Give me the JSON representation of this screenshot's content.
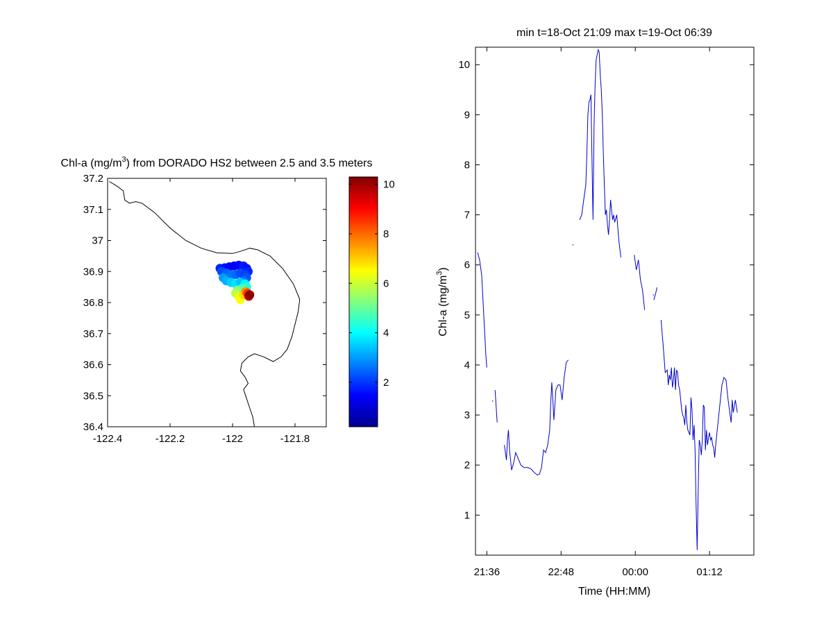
{
  "chart_data": [
    {
      "type": "scatter",
      "title": "Chl-a (mg/m",
      "title_sup": "3",
      "title_rest": ") from DORADO HS2 between 2.5 and 3.5 meters",
      "xlim": [
        -122.4,
        -121.7
      ],
      "ylim": [
        36.4,
        37.2
      ],
      "xticks": [
        -122.4,
        -122.2,
        -122,
        -121.8
      ],
      "xtick_labels": [
        "-122.4",
        "-122.2",
        "-122",
        "-121.8"
      ],
      "yticks": [
        36.4,
        36.5,
        36.6,
        36.7,
        36.8,
        36.9,
        37.0,
        37.1,
        37.2
      ],
      "ytick_labels": [
        "36.4",
        "36.5",
        "36.6",
        "36.7",
        "36.8",
        "36.9",
        "37",
        "37.1",
        "37.2"
      ],
      "colorbar": {
        "min": 0.2,
        "max": 10.3,
        "ticks": [
          2,
          4,
          6,
          8,
          10
        ],
        "tick_labels": [
          "2",
          "4",
          "6",
          "8",
          "10"
        ],
        "colormap": "jet"
      },
      "coastline": [
        [
          -122.395,
          37.19
        ],
        [
          -122.37,
          37.175
        ],
        [
          -122.35,
          37.16
        ],
        [
          -122.345,
          37.13
        ],
        [
          -122.33,
          37.12
        ],
        [
          -122.31,
          37.125
        ],
        [
          -122.29,
          37.12
        ],
        [
          -122.25,
          37.09
        ],
        [
          -122.2,
          37.04
        ],
        [
          -122.15,
          37.0
        ],
        [
          -122.1,
          36.975
        ],
        [
          -122.05,
          36.96
        ],
        [
          -122.0,
          36.958
        ],
        [
          -121.975,
          36.965
        ],
        [
          -121.945,
          36.975
        ],
        [
          -121.92,
          36.97
        ],
        [
          -121.88,
          36.95
        ],
        [
          -121.84,
          36.91
        ],
        [
          -121.805,
          36.86
        ],
        [
          -121.785,
          36.81
        ],
        [
          -121.79,
          36.77
        ],
        [
          -121.8,
          36.73
        ],
        [
          -121.81,
          36.69
        ],
        [
          -121.825,
          36.65
        ],
        [
          -121.845,
          36.625
        ],
        [
          -121.87,
          36.61
        ],
        [
          -121.9,
          36.625
        ],
        [
          -121.93,
          36.635
        ],
        [
          -121.95,
          36.625
        ],
        [
          -121.97,
          36.605
        ],
        [
          -121.975,
          36.58
        ],
        [
          -121.96,
          36.56
        ],
        [
          -121.95,
          36.54
        ],
        [
          -121.965,
          36.52
        ],
        [
          -121.955,
          36.49
        ],
        [
          -121.945,
          36.46
        ],
        [
          -121.935,
          36.43
        ],
        [
          -121.93,
          36.4
        ]
      ],
      "points": [
        {
          "lon": -122.04,
          "lat": 36.91,
          "v": 1.8
        },
        {
          "lon": -122.025,
          "lat": 36.912,
          "v": 1.6
        },
        {
          "lon": -122.01,
          "lat": 36.915,
          "v": 1.5
        },
        {
          "lon": -121.995,
          "lat": 36.918,
          "v": 1.4
        },
        {
          "lon": -121.98,
          "lat": 36.92,
          "v": 1.5
        },
        {
          "lon": -121.965,
          "lat": 36.918,
          "v": 1.7
        },
        {
          "lon": -121.955,
          "lat": 36.91,
          "v": 1.6
        },
        {
          "lon": -121.95,
          "lat": 36.9,
          "v": 1.8
        },
        {
          "lon": -122.035,
          "lat": 36.9,
          "v": 2.2
        },
        {
          "lon": -122.02,
          "lat": 36.895,
          "v": 2.4
        },
        {
          "lon": -122.005,
          "lat": 36.89,
          "v": 2.6
        },
        {
          "lon": -121.99,
          "lat": 36.89,
          "v": 2.5
        },
        {
          "lon": -121.975,
          "lat": 36.895,
          "v": 2.2
        },
        {
          "lon": -121.96,
          "lat": 36.89,
          "v": 2.1
        },
        {
          "lon": -121.955,
          "lat": 36.88,
          "v": 2.3
        },
        {
          "lon": -121.965,
          "lat": 36.87,
          "v": 2.6
        },
        {
          "lon": -122.03,
          "lat": 36.88,
          "v": 3.0
        },
        {
          "lon": -122.02,
          "lat": 36.87,
          "v": 3.2
        },
        {
          "lon": -122.005,
          "lat": 36.865,
          "v": 3.5
        },
        {
          "lon": -121.99,
          "lat": 36.86,
          "v": 3.7
        },
        {
          "lon": -121.975,
          "lat": 36.865,
          "v": 3.4
        },
        {
          "lon": -121.96,
          "lat": 36.86,
          "v": 3.9
        },
        {
          "lon": -121.955,
          "lat": 36.85,
          "v": 4.3
        },
        {
          "lon": -121.97,
          "lat": 36.845,
          "v": 4.8
        },
        {
          "lon": -121.985,
          "lat": 36.84,
          "v": 5.2
        },
        {
          "lon": -121.99,
          "lat": 36.83,
          "v": 5.8
        },
        {
          "lon": -121.98,
          "lat": 36.82,
          "v": 6.2
        },
        {
          "lon": -121.975,
          "lat": 36.81,
          "v": 6.5
        },
        {
          "lon": -121.965,
          "lat": 36.825,
          "v": 6.9
        },
        {
          "lon": -121.958,
          "lat": 36.835,
          "v": 7.6
        },
        {
          "lon": -121.952,
          "lat": 36.83,
          "v": 8.5
        },
        {
          "lon": -121.948,
          "lat": 36.82,
          "v": 9.5
        },
        {
          "lon": -121.945,
          "lat": 36.825,
          "v": 10.2
        }
      ]
    },
    {
      "type": "line",
      "title": "min t=18-Oct 21:09 max t=19-Oct 06:39",
      "xlabel": "Time (HH:MM)",
      "ylabel": "Chl-a (mg/m",
      "ylabel_sup": "3",
      "ylabel_rest": ")",
      "xlim": [
        "21:25",
        "01:55"
      ],
      "ylim": [
        0.2,
        10.35
      ],
      "xticks": [
        "21:36",
        "22:48",
        "00:00",
        "01:12"
      ],
      "xtick_labels": [
        "21:36",
        "22:48",
        "00:00",
        "01:12"
      ],
      "yticks": [
        1,
        2,
        3,
        4,
        5,
        6,
        7,
        8,
        9,
        10
      ],
      "ytick_labels": [
        "1",
        "2",
        "3",
        "4",
        "5",
        "6",
        "7",
        "8",
        "9",
        "10"
      ],
      "series": [
        {
          "color": "#0000cc",
          "segments": [
            [
              [
                "21:27",
                6.25
              ],
              [
                "21:29",
                6.1
              ],
              [
                "21:31",
                5.8
              ],
              [
                "21:33",
                5.0
              ],
              [
                "21:35",
                4.2
              ],
              [
                "21:36",
                3.95
              ]
            ],
            [
              [
                "21:44",
                3.5
              ],
              [
                "21:46",
                2.85
              ]
            ],
            [
              [
                "21:53",
                2.4
              ],
              [
                "21:55",
                2.1
              ],
              [
                "21:56",
                2.5
              ],
              [
                "21:57",
                2.7
              ],
              [
                "21:58",
                2.3
              ],
              [
                "22:00",
                1.9
              ],
              [
                "22:02",
                2.05
              ],
              [
                "22:04",
                2.25
              ],
              [
                "22:06",
                2.15
              ],
              [
                "22:09",
                2.0
              ],
              [
                "22:12",
                1.95
              ],
              [
                "22:16",
                1.95
              ],
              [
                "22:19",
                1.92
              ],
              [
                "22:22",
                1.85
              ],
              [
                "22:25",
                1.8
              ],
              [
                "22:27",
                1.82
              ],
              [
                "22:29",
                1.95
              ],
              [
                "22:31",
                2.3
              ],
              [
                "22:33",
                2.25
              ],
              [
                "22:35",
                2.4
              ],
              [
                "22:37",
                2.7
              ],
              [
                "22:38",
                3.25
              ],
              [
                "22:39",
                3.65
              ],
              [
                "22:40",
                3.3
              ],
              [
                "22:41",
                2.9
              ],
              [
                "22:43",
                3.5
              ],
              [
                "22:45",
                3.6
              ],
              [
                "22:47",
                3.6
              ],
              [
                "22:49",
                3.3
              ],
              [
                "22:51",
                3.75
              ],
              [
                "22:53",
                4.05
              ],
              [
                "22:55",
                4.1
              ]
            ],
            [
              [
                "23:06",
                6.9
              ],
              [
                "23:08",
                7.0
              ],
              [
                "23:10",
                7.3
              ],
              [
                "23:12",
                7.6
              ],
              [
                "23:13",
                8.2
              ],
              [
                "23:14",
                9.0
              ],
              [
                "23:15",
                9.25
              ],
              [
                "23:16",
                9.3
              ],
              [
                "23:17",
                9.4
              ],
              [
                "23:18",
                8.1
              ],
              [
                "23:19",
                6.9
              ],
              [
                "23:20",
                8.8
              ],
              [
                "23:21",
                9.6
              ],
              [
                "23:22",
                10.1
              ],
              [
                "23:23",
                10.2
              ],
              [
                "23:24",
                10.3
              ],
              [
                "23:25",
                10.25
              ],
              [
                "23:26",
                9.8
              ],
              [
                "23:27",
                9.5
              ],
              [
                "23:28",
                9.0
              ],
              [
                "23:29",
                8.2
              ],
              [
                "23:30",
                7.6
              ],
              [
                "23:31",
                7.0
              ],
              [
                "23:32",
                7.1
              ],
              [
                "23:33",
                6.8
              ],
              [
                "23:34",
                6.6
              ],
              [
                "23:35",
                6.9
              ],
              [
                "23:36",
                7.3
              ],
              [
                "23:37",
                7.1
              ],
              [
                "23:38",
                6.9
              ],
              [
                "23:39",
                7.0
              ],
              [
                "23:40",
                6.85
              ],
              [
                "23:42",
                7.0
              ],
              [
                "23:44",
                6.5
              ],
              [
                "23:46",
                6.15
              ]
            ],
            [
              [
                "23:59",
                6.2
              ],
              [
                "24:01",
                5.9
              ],
              [
                "24:03",
                6.1
              ],
              [
                "24:05",
                5.7
              ],
              [
                "24:07",
                5.5
              ],
              [
                "24:09",
                5.1
              ]
            ],
            [
              [
                "24:18",
                5.3
              ],
              [
                "24:20",
                5.45
              ],
              [
                "24:21",
                5.55
              ]
            ],
            [
              [
                "24:25",
                4.9
              ],
              [
                "24:27",
                4.4
              ],
              [
                "24:29",
                3.85
              ],
              [
                "24:31",
                3.9
              ],
              [
                "24:32",
                3.6
              ],
              [
                "24:33",
                3.8
              ],
              [
                "24:34",
                3.7
              ],
              [
                "24:35",
                3.95
              ],
              [
                "24:36",
                3.55
              ],
              [
                "24:37",
                3.7
              ],
              [
                "24:38",
                3.95
              ],
              [
                "24:39",
                3.5
              ],
              [
                "24:40",
                3.9
              ],
              [
                "24:41",
                3.85
              ],
              [
                "24:42",
                3.6
              ],
              [
                "24:43",
                3.5
              ],
              [
                "24:44",
                3.3
              ],
              [
                "24:45",
                3.1
              ],
              [
                "24:46",
                3.0
              ],
              [
                "24:47",
                2.95
              ],
              [
                "24:48",
                2.8
              ],
              [
                "24:49",
                3.2
              ],
              [
                "24:50",
                2.85
              ],
              [
                "24:51",
                2.7
              ],
              [
                "24:53",
                2.6
              ],
              [
                "24:54",
                3.35
              ],
              [
                "24:55",
                3.1
              ],
              [
                "24:56",
                2.5
              ],
              [
                "24:57",
                2.8
              ],
              [
                "24:58",
                2.3
              ],
              [
                "24:59",
                1.2
              ],
              [
                "25:00",
                0.3
              ],
              [
                "25:01",
                1.5
              ],
              [
                "25:02",
                2.5
              ],
              [
                "25:03",
                2.4
              ],
              [
                "25:04",
                2.2
              ],
              [
                "25:05",
                2.5
              ],
              [
                "25:06",
                3.2
              ],
              [
                "25:07",
                3.15
              ],
              [
                "25:08",
                2.3
              ],
              [
                "25:09",
                2.7
              ],
              [
                "25:10",
                2.4
              ],
              [
                "25:11",
                2.55
              ],
              [
                "25:12",
                2.65
              ],
              [
                "25:13",
                2.5
              ],
              [
                "25:14",
                2.55
              ],
              [
                "25:15",
                2.4
              ],
              [
                "25:16",
                2.35
              ],
              [
                "25:17",
                2.15
              ],
              [
                "25:18",
                2.4
              ],
              [
                "25:20",
                2.8
              ],
              [
                "25:22",
                3.2
              ],
              [
                "25:24",
                3.6
              ],
              [
                "25:26",
                3.75
              ],
              [
                "25:28",
                3.7
              ],
              [
                "25:30",
                3.3
              ],
              [
                "25:32",
                3.0
              ],
              [
                "25:33",
                2.85
              ],
              [
                "25:34",
                3.3
              ],
              [
                "25:35",
                3.05
              ],
              [
                "25:37",
                3.3
              ],
              [
                "25:39",
                3.05
              ]
            ]
          ],
          "isolated_points": [
            [
              "21:41",
              3.28
            ],
            [
              "22:59",
              6.4
            ],
            [
              "24:17",
              5.4
            ]
          ]
        }
      ]
    }
  ]
}
